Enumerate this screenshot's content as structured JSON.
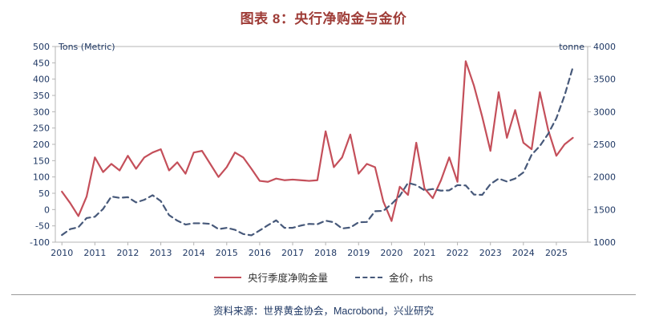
{
  "title": "图表 8：央行净购金与金价",
  "source": "资料来源：世界黄金协会，Macrobond，兴业研究",
  "colors": {
    "title_text": "#9e3b36",
    "axis_text": "#1f3864",
    "source_text": "#1f3864",
    "frame": "#b4b4b4",
    "series_red": "#c44f5a",
    "series_slate": "#47597a"
  },
  "legend": [
    {
      "label": "央行季度净购金量",
      "style": "solid",
      "color": "#c44f5a"
    },
    {
      "label": "金价，rhs",
      "style": "dashed",
      "color": "#47597a"
    }
  ],
  "chart_data": {
    "type": "line",
    "title": "图表 8：央行净购金与金价",
    "x_labels": [
      "2010",
      "2011",
      "2012",
      "2013",
      "2014",
      "2015",
      "2016",
      "2017",
      "2018",
      "2019",
      "2020",
      "2021",
      "2022",
      "2023",
      "2024",
      "2025"
    ],
    "x_start_year": 2010,
    "points_per_year": 4,
    "left_axis": {
      "unit": "Tons (Metric)",
      "min": -100,
      "max": 500,
      "step": 50
    },
    "right_axis": {
      "unit": "tonne",
      "min": 1000,
      "max": 4000,
      "step": 500
    },
    "grid": false,
    "legend_position": "bottom",
    "series": [
      {
        "name": "央行季度净购金量",
        "axis": "left",
        "color": "#c44f5a",
        "dash": null,
        "values": [
          55,
          20,
          -20,
          40,
          160,
          115,
          140,
          120,
          165,
          125,
          160,
          175,
          185,
          120,
          145,
          110,
          175,
          180,
          140,
          100,
          130,
          175,
          160,
          125,
          88,
          85,
          95,
          90,
          92,
          90,
          88,
          90,
          240,
          130,
          160,
          230,
          110,
          140,
          130,
          25,
          -35,
          70,
          45,
          205,
          65,
          35,
          90,
          160,
          85,
          455,
          380,
          285,
          180,
          360,
          220,
          305,
          205,
          185,
          360,
          245,
          165,
          200,
          220
        ]
      },
      {
        "name": "金价，rhs",
        "axis": "right",
        "color": "#47597a",
        "dash": "7 5",
        "values": [
          1110,
          1200,
          1230,
          1370,
          1390,
          1510,
          1700,
          1680,
          1690,
          1610,
          1650,
          1720,
          1630,
          1415,
          1330,
          1270,
          1290,
          1290,
          1280,
          1200,
          1220,
          1190,
          1125,
          1105,
          1180,
          1260,
          1335,
          1220,
          1220,
          1255,
          1280,
          1275,
          1330,
          1305,
          1210,
          1225,
          1305,
          1310,
          1475,
          1480,
          1585,
          1710,
          1910,
          1875,
          1795,
          1815,
          1790,
          1795,
          1875,
          1870,
          1730,
          1725,
          1890,
          1975,
          1930,
          1975,
          2070,
          2340,
          2475,
          2660,
          2900,
          3250,
          3680
        ]
      }
    ]
  }
}
